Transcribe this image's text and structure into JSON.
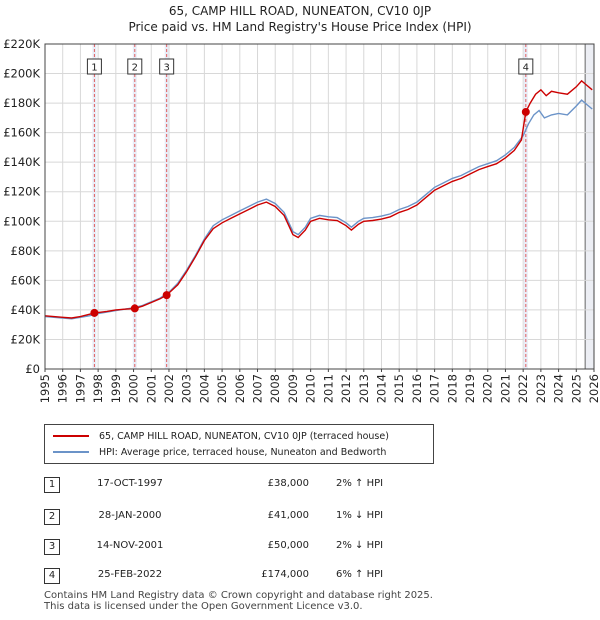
{
  "title_line1": "65, CAMP HILL ROAD, NUNEATON, CV10 0JP",
  "title_line2": "Price paid vs. HM Land Registry's House Price Index (HPI)",
  "chart_data": {
    "type": "line",
    "xlim": [
      1995,
      2026
    ],
    "ylim": [
      0,
      220000
    ],
    "x_ticks": [
      "1995",
      "1996",
      "1997",
      "1998",
      "1999",
      "2000",
      "2001",
      "2002",
      "2003",
      "2004",
      "2005",
      "2006",
      "2007",
      "2008",
      "2009",
      "2010",
      "2011",
      "2012",
      "2013",
      "2014",
      "2015",
      "2016",
      "2017",
      "2018",
      "2019",
      "2020",
      "2021",
      "2022",
      "2023",
      "2024",
      "2025",
      "2026"
    ],
    "y_ticks": [
      {
        "value": 0,
        "label": "£0"
      },
      {
        "value": 20000,
        "label": "£20K"
      },
      {
        "value": 40000,
        "label": "£40K"
      },
      {
        "value": 60000,
        "label": "£60K"
      },
      {
        "value": 80000,
        "label": "£80K"
      },
      {
        "value": 100000,
        "label": "£100K"
      },
      {
        "value": 120000,
        "label": "£120K"
      },
      {
        "value": 140000,
        "label": "£140K"
      },
      {
        "value": 160000,
        "label": "£160K"
      },
      {
        "value": 180000,
        "label": "£180K"
      },
      {
        "value": 200000,
        "label": "£200K"
      },
      {
        "value": 220000,
        "label": "£220K"
      }
    ],
    "series": [
      {
        "name": "HPI: Average price, terraced house, Nuneaton and Bedworth",
        "color": "#6b93c8",
        "points": [
          [
            1995,
            35500
          ],
          [
            1996,
            34500
          ],
          [
            1996.5,
            34000
          ],
          [
            1997,
            35000
          ],
          [
            1997.5,
            36000
          ],
          [
            1998,
            37500
          ],
          [
            1998.5,
            38500
          ],
          [
            1999,
            39500
          ],
          [
            1999.5,
            40500
          ],
          [
            2000,
            41500
          ],
          [
            2000.5,
            43000
          ],
          [
            2001,
            45500
          ],
          [
            2001.5,
            48000
          ],
          [
            2002,
            52000
          ],
          [
            2002.5,
            58000
          ],
          [
            2003,
            67000
          ],
          [
            2003.5,
            77000
          ],
          [
            2004,
            88000
          ],
          [
            2004.5,
            97000
          ],
          [
            2005,
            101000
          ],
          [
            2005.5,
            104000
          ],
          [
            2006,
            107000
          ],
          [
            2006.5,
            110000
          ],
          [
            2007,
            113000
          ],
          [
            2007.5,
            115000
          ],
          [
            2008,
            112000
          ],
          [
            2008.5,
            106000
          ],
          [
            2009,
            93000
          ],
          [
            2009.3,
            91000
          ],
          [
            2009.7,
            96000
          ],
          [
            2010,
            102000
          ],
          [
            2010.5,
            104000
          ],
          [
            2011,
            103000
          ],
          [
            2011.5,
            102500
          ],
          [
            2012,
            99000
          ],
          [
            2012.3,
            96000
          ],
          [
            2012.7,
            100000
          ],
          [
            2013,
            102000
          ],
          [
            2013.5,
            102500
          ],
          [
            2014,
            103500
          ],
          [
            2014.5,
            105000
          ],
          [
            2015,
            108000
          ],
          [
            2015.5,
            110000
          ],
          [
            2016,
            113000
          ],
          [
            2016.5,
            118000
          ],
          [
            2017,
            123000
          ],
          [
            2017.5,
            126000
          ],
          [
            2018,
            129000
          ],
          [
            2018.5,
            131000
          ],
          [
            2019,
            134000
          ],
          [
            2019.5,
            137000
          ],
          [
            2020,
            139000
          ],
          [
            2020.5,
            141000
          ],
          [
            2021,
            145000
          ],
          [
            2021.5,
            150000
          ],
          [
            2022,
            158000
          ],
          [
            2022.3,
            166000
          ],
          [
            2022.6,
            172000
          ],
          [
            2022.9,
            175000
          ],
          [
            2023.2,
            170000
          ],
          [
            2023.6,
            172000
          ],
          [
            2024,
            173000
          ],
          [
            2024.5,
            172000
          ],
          [
            2025,
            178000
          ],
          [
            2025.3,
            182000
          ],
          [
            2025.6,
            179000
          ],
          [
            2025.9,
            176000
          ]
        ]
      },
      {
        "name": "65, CAMP HILL ROAD, NUNEATON, CV10 0JP (terraced house)",
        "color": "#cc0000",
        "points": [
          [
            1995,
            36000
          ],
          [
            1996,
            35000
          ],
          [
            1996.5,
            34500
          ],
          [
            1997,
            35500
          ],
          [
            1997.8,
            38000
          ],
          [
            1998.5,
            39000
          ],
          [
            1999,
            40000
          ],
          [
            1999.5,
            40500
          ],
          [
            2000.07,
            41000
          ],
          [
            2000.5,
            42500
          ],
          [
            2001,
            45000
          ],
          [
            2001.5,
            47500
          ],
          [
            2001.87,
            50000
          ],
          [
            2002.5,
            57000
          ],
          [
            2003,
            66000
          ],
          [
            2003.5,
            76000
          ],
          [
            2004,
            87000
          ],
          [
            2004.5,
            95000
          ],
          [
            2005,
            99000
          ],
          [
            2005.5,
            102000
          ],
          [
            2006,
            105000
          ],
          [
            2006.5,
            108000
          ],
          [
            2007,
            111000
          ],
          [
            2007.5,
            113000
          ],
          [
            2008,
            110000
          ],
          [
            2008.5,
            104000
          ],
          [
            2009,
            91000
          ],
          [
            2009.3,
            89000
          ],
          [
            2009.7,
            94000
          ],
          [
            2010,
            100000
          ],
          [
            2010.5,
            102000
          ],
          [
            2011,
            101000
          ],
          [
            2011.5,
            100500
          ],
          [
            2012,
            97000
          ],
          [
            2012.3,
            94000
          ],
          [
            2012.7,
            98000
          ],
          [
            2013,
            100000
          ],
          [
            2013.5,
            100500
          ],
          [
            2014,
            101500
          ],
          [
            2014.5,
            103000
          ],
          [
            2015,
            106000
          ],
          [
            2015.5,
            108000
          ],
          [
            2016,
            111000
          ],
          [
            2016.5,
            116000
          ],
          [
            2017,
            121000
          ],
          [
            2017.5,
            124000
          ],
          [
            2018,
            127000
          ],
          [
            2018.5,
            129000
          ],
          [
            2019,
            132000
          ],
          [
            2019.5,
            135000
          ],
          [
            2020,
            137000
          ],
          [
            2020.5,
            139000
          ],
          [
            2021,
            143000
          ],
          [
            2021.5,
            148000
          ],
          [
            2021.9,
            155000
          ],
          [
            2022.15,
            174000
          ],
          [
            2022.4,
            180000
          ],
          [
            2022.7,
            186000
          ],
          [
            2023,
            189000
          ],
          [
            2023.3,
            185000
          ],
          [
            2023.6,
            188000
          ],
          [
            2024,
            187000
          ],
          [
            2024.5,
            186000
          ],
          [
            2025,
            191000
          ],
          [
            2025.3,
            195000
          ],
          [
            2025.6,
            192000
          ],
          [
            2025.9,
            189000
          ]
        ]
      }
    ],
    "sales": [
      {
        "label": "1",
        "x": 1997.79,
        "price": 38000
      },
      {
        "label": "2",
        "x": 2000.07,
        "price": 41000
      },
      {
        "label": "3",
        "x": 2001.87,
        "price": 50000
      },
      {
        "label": "4",
        "x": 2022.15,
        "price": 174000
      }
    ],
    "projection_start": 2025.5
  },
  "legend": {
    "property_label": "65, CAMP HILL ROAD, NUNEATON, CV10 0JP (terraced house)",
    "hpi_label": "HPI: Average price, terraced house, Nuneaton and Bedworth"
  },
  "transactions": [
    {
      "num": "1",
      "date": "17-OCT-1997",
      "price": "£38,000",
      "hpi": "2% ↑ HPI"
    },
    {
      "num": "2",
      "date": "28-JAN-2000",
      "price": "£41,000",
      "hpi": "1% ↓ HPI"
    },
    {
      "num": "3",
      "date": "14-NOV-2001",
      "price": "£50,000",
      "hpi": "2% ↓ HPI"
    },
    {
      "num": "4",
      "date": "25-FEB-2022",
      "price": "£174,000",
      "hpi": "6% ↑ HPI"
    }
  ],
  "footer_line1": "Contains HM Land Registry data © Crown copyright and database right 2025.",
  "footer_line2": "This data is licensed under the Open Government Licence v3.0."
}
